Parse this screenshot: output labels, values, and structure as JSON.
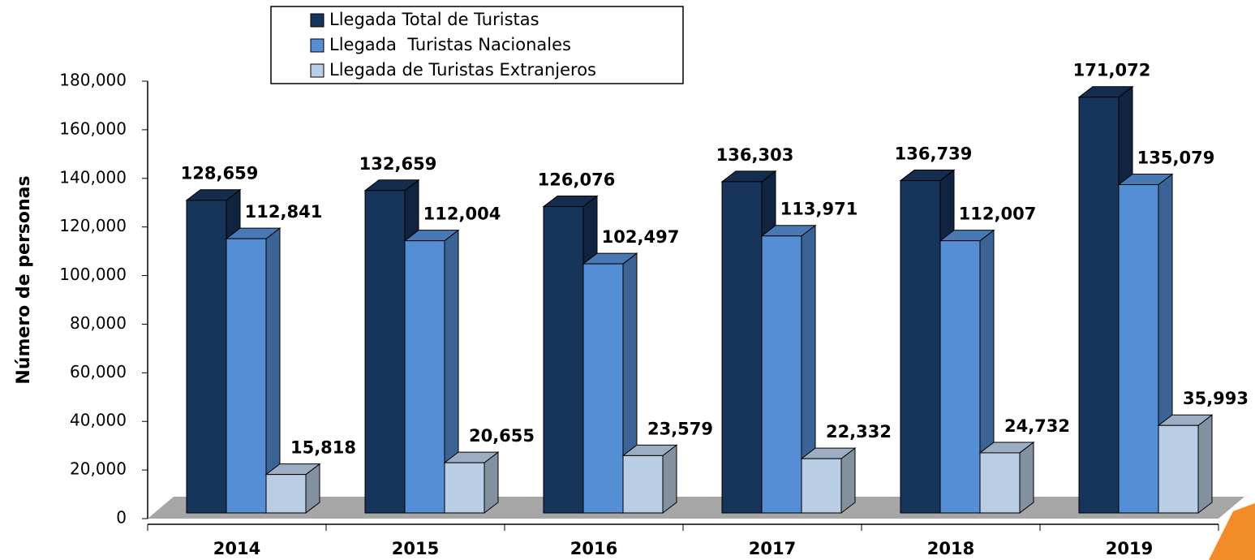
{
  "chart_data": {
    "type": "bar3d",
    "y_label": "Número de personas",
    "categories": [
      "2014",
      "2015",
      "2016",
      "2017",
      "2018",
      "2019"
    ],
    "series": [
      {
        "name": "Llegada Total de Turistas",
        "color": "#17345a",
        "values": [
          128659,
          132659,
          126076,
          136303,
          136739,
          171072
        ],
        "value_labels": [
          "128,659",
          "132,659",
          "126,076",
          "136,303",
          "136,739",
          "171,072"
        ]
      },
      {
        "name": "Llegada  Turistas Nacionales",
        "color": "#558ed5",
        "values": [
          112841,
          112004,
          102497,
          113971,
          112007,
          135079
        ],
        "value_labels": [
          "112,841",
          "112,004",
          "102,497",
          "113,971",
          "112,007",
          "135,079"
        ]
      },
      {
        "name": "Llegada de Turistas Extranjeros",
        "color": "#b9cde5",
        "values": [
          15818,
          20655,
          23579,
          22332,
          24732,
          35993
        ],
        "value_labels": [
          "15,818",
          "20,655",
          "23,579",
          "22,332",
          "24,732",
          "35,993"
        ]
      }
    ],
    "ylim": [
      0,
      180000
    ],
    "yticks": [
      0,
      {
        "value": 20000,
        "label": "20,000"
      },
      {
        "value": 40000,
        "label": "40,000"
      },
      {
        "value": 60000,
        "label": "60,000"
      },
      {
        "value": 80000,
        "label": "80,000"
      },
      {
        "value": 100000,
        "label": "100,000"
      },
      {
        "value": 120000,
        "label": "120,000"
      },
      {
        "value": 140000,
        "label": "140,000"
      },
      {
        "value": 160000,
        "label": "160,000"
      },
      {
        "value": 180000,
        "label": "180,000"
      }
    ]
  }
}
